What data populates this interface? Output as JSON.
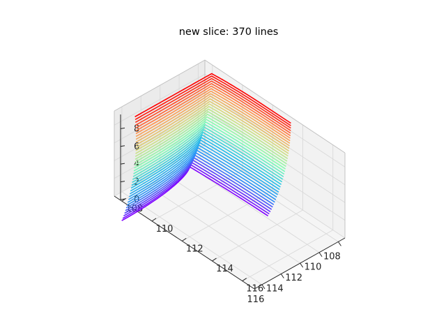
{
  "chart_data": {
    "type": "line3d",
    "title": "new slice: 370 lines",
    "xlabel": "",
    "ylabel": "",
    "zlabel": "",
    "colormap": "rainbow",
    "colormap_stops": [
      "#8000ff",
      "#2c8ef8",
      "#25c0e8",
      "#80ffb4",
      "#d4dd80",
      "#ff964f",
      "#ff0000"
    ],
    "x_ticks": [
      108,
      110,
      112,
      114,
      116
    ],
    "y_ticks": [
      108,
      110,
      112,
      114,
      116
    ],
    "z_ticks": [
      0,
      2,
      4,
      6,
      8
    ],
    "xlim": [
      107.3,
      116.8
    ],
    "ylim": [
      107.5,
      116.8
    ],
    "zlim": [
      0,
      9.6
    ],
    "grid": true,
    "pane_color": "#f2f2f2",
    "line_count_visible": 370,
    "description": "",
    "x_tick_labels": [
      "108",
      "110",
      "112",
      "114",
      "116"
    ],
    "y_tick_labels": [
      "108",
      "110",
      "112",
      "114",
      "116"
    ],
    "z_tick_labels": [
      "0",
      "2",
      "4",
      "6",
      "8"
    ]
  }
}
